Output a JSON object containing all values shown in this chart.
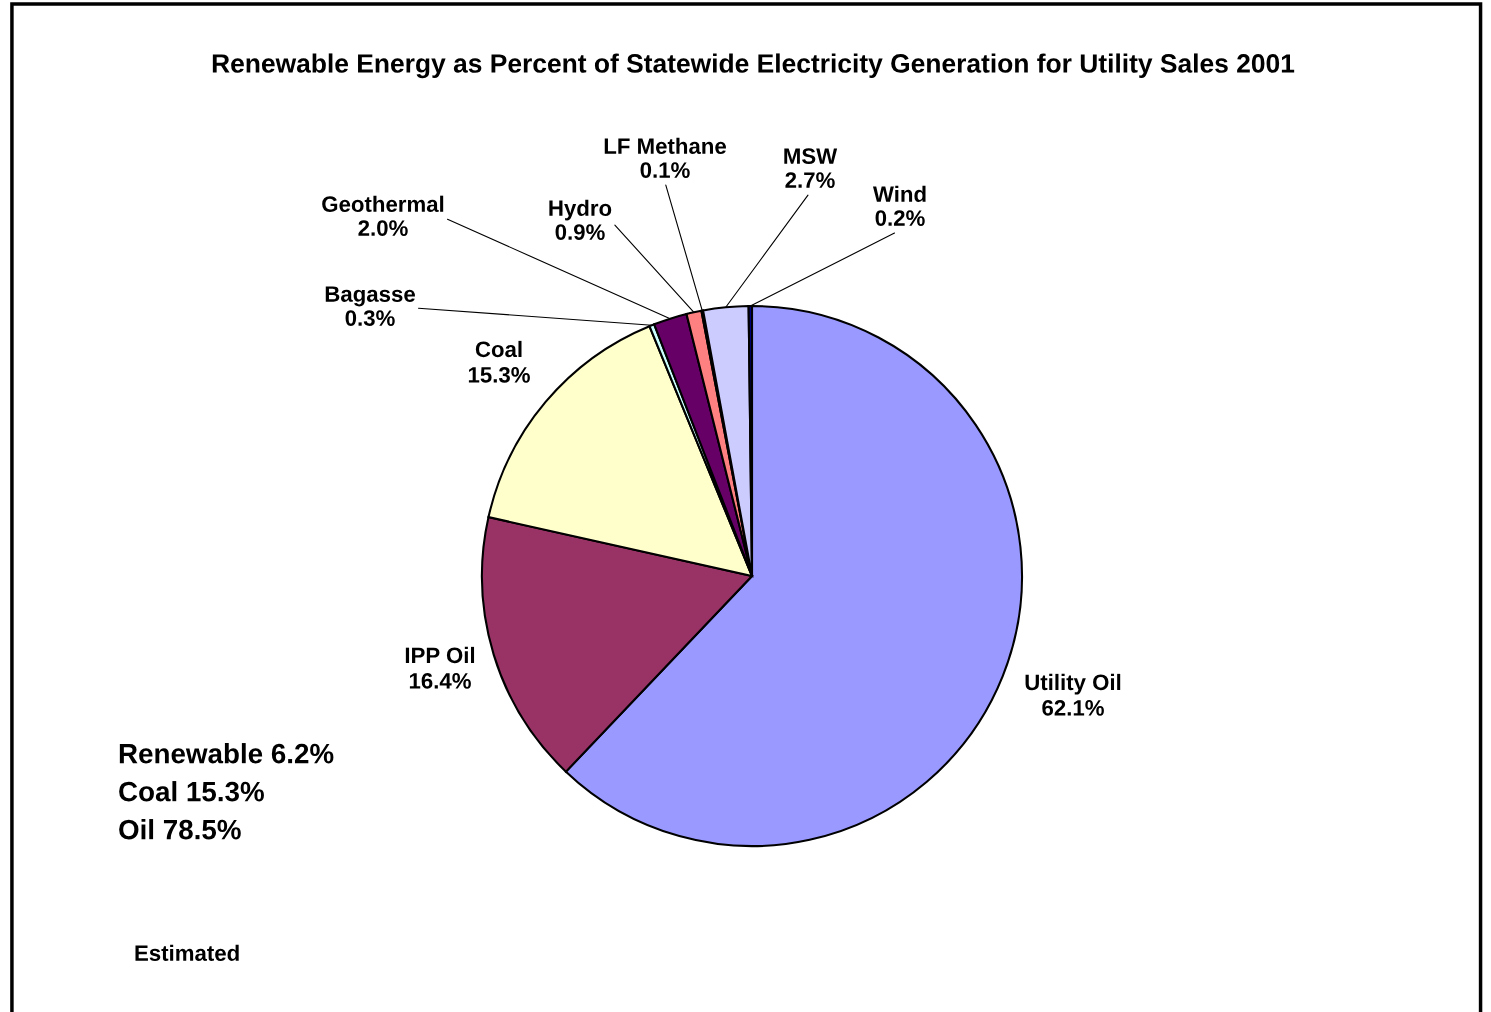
{
  "chart_data": {
    "type": "pie",
    "title": "Renewable Energy as Percent of Statewide Electricity Generation for Utility Sales 2001",
    "categories": [
      "Utility Oil",
      "IPP Oil",
      "Coal",
      "Bagasse",
      "Geothermal",
      "Hydro",
      "LF Methane",
      "MSW",
      "Wind"
    ],
    "values": [
      62.1,
      16.4,
      15.3,
      0.3,
      2.0,
      0.9,
      0.1,
      2.7,
      0.2
    ],
    "value_labels": [
      "62.1%",
      "16.4%",
      "15.3%",
      "0.3%",
      "2.0%",
      "0.9%",
      "0.1%",
      "2.7%",
      "0.2%"
    ],
    "colors": [
      "#9999ff",
      "#993366",
      "#ffffcc",
      "#ccffff",
      "#660066",
      "#ff8080",
      "#0066cc",
      "#ccccff",
      "#000080"
    ],
    "annotations": [
      "Renewable 6.2%",
      "Coal 15.3%",
      "Oil 78.5%",
      "Estimated"
    ],
    "legend": false
  }
}
